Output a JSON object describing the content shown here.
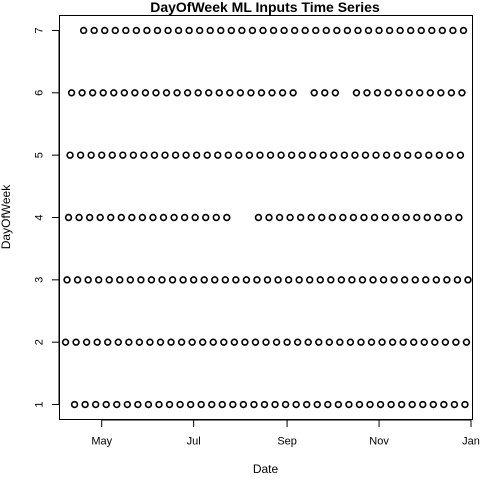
{
  "chart_data": {
    "type": "scatter",
    "title": "DayOfWeek ML Inputs Time Series",
    "xlabel": "Date",
    "ylabel": "DayOfWeek",
    "x_ticks": [
      {
        "date": "2015-05-01",
        "label": "May"
      },
      {
        "date": "2015-07-01",
        "label": "Jul"
      },
      {
        "date": "2015-09-01",
        "label": "Sep"
      },
      {
        "date": "2015-11-01",
        "label": "Nov"
      },
      {
        "date": "2016-01-01",
        "label": "Jan"
      }
    ],
    "y_ticks": [
      1,
      2,
      3,
      4,
      5,
      6,
      7
    ],
    "xlim": [
      "2015-04-03",
      "2016-01-02"
    ],
    "ylim": [
      0.76,
      7.24
    ],
    "grid": false,
    "marker": "open-circle",
    "series": [
      {
        "values": {
          "day": 1,
          "start": "2015-04-13",
          "end": "2015-12-28",
          "step_days": 7,
          "missing": []
        }
      },
      {
        "values": {
          "day": 2,
          "start": "2015-04-07",
          "end": "2015-12-29",
          "step_days": 7,
          "missing": []
        }
      },
      {
        "values": {
          "day": 3,
          "start": "2015-04-08",
          "end": "2015-12-30",
          "step_days": 7,
          "missing": []
        }
      },
      {
        "values": {
          "day": 4,
          "start": "2015-04-09",
          "end": "2015-12-24",
          "step_days": 7,
          "missing": [
            "2015-07-30",
            "2015-08-06"
          ]
        }
      },
      {
        "values": {
          "day": 5,
          "start": "2015-04-10",
          "end": "2015-12-25",
          "step_days": 7,
          "missing": []
        }
      },
      {
        "values": {
          "day": 6,
          "start": "2015-04-11",
          "end": "2015-12-26",
          "step_days": 7,
          "missing": [
            "2015-09-12",
            "2015-10-10"
          ]
        }
      },
      {
        "values": {
          "day": 7,
          "start": "2015-04-19",
          "end": "2015-12-27",
          "step_days": 7,
          "missing": []
        }
      }
    ]
  }
}
